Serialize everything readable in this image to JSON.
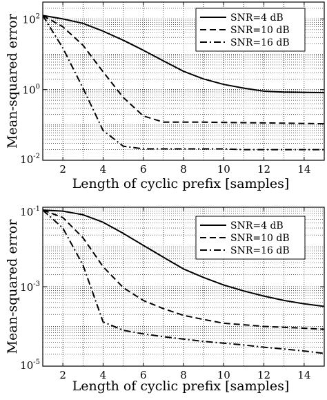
{
  "chart_data": [
    {
      "type": "line",
      "xlabel": "Length of cyclic prefix [samples]",
      "ylabel": "Mean-squared error",
      "yscale": "log",
      "xlim": [
        1,
        15
      ],
      "ylim": [
        0.01,
        300
      ],
      "xticks": [
        2,
        4,
        6,
        8,
        10,
        12,
        14
      ],
      "yticks": [
        {
          "value": 100,
          "base": "10",
          "exp": "2"
        },
        {
          "value": 1,
          "base": "10",
          "exp": "0"
        },
        {
          "value": 0.01,
          "base": "10",
          "exp": "-2"
        }
      ],
      "grid": true,
      "legend_position": "top-right",
      "series": [
        {
          "name": "SNR=4  dB",
          "style": "solid",
          "x": [
            1,
            2,
            3,
            4,
            5,
            6,
            7,
            8,
            9,
            10,
            11,
            12,
            13,
            14,
            15
          ],
          "y": [
            125,
            100,
            75,
            45,
            25,
            13,
            6.5,
            3.3,
            2.0,
            1.4,
            1.1,
            0.9,
            0.85,
            0.83,
            0.82
          ]
        },
        {
          "name": "SNR=10  dB",
          "style": "dashed",
          "x": [
            1,
            2,
            3,
            4,
            5,
            6,
            7,
            8,
            9,
            10,
            11,
            12,
            13,
            14,
            15
          ],
          "y": [
            125,
            60,
            18,
            3.2,
            0.6,
            0.18,
            0.12,
            0.12,
            0.12,
            0.118,
            0.116,
            0.114,
            0.112,
            0.11,
            0.108
          ]
        },
        {
          "name": "SNR=16  dB",
          "style": "dashdot",
          "x": [
            1,
            2,
            3,
            4,
            5,
            6,
            7,
            8,
            9,
            10,
            11,
            12,
            13,
            14,
            15
          ],
          "y": [
            125,
            15,
            1.1,
            0.07,
            0.025,
            0.021,
            0.021,
            0.021,
            0.021,
            0.021,
            0.02,
            0.02,
            0.02,
            0.02,
            0.02
          ]
        }
      ]
    },
    {
      "type": "line",
      "xlabel": "Length of cyclic prefix [samples]",
      "ylabel": "Mean-squared error",
      "yscale": "log",
      "xlim": [
        1,
        15
      ],
      "ylim": [
        1e-05,
        0.1
      ],
      "xticks": [
        2,
        4,
        6,
        8,
        10,
        12,
        14
      ],
      "yticks": [
        {
          "value": 0.1,
          "base": "10",
          "exp": "-1"
        },
        {
          "value": 0.001,
          "base": "10",
          "exp": "-3"
        },
        {
          "value": 1e-05,
          "base": "10",
          "exp": "-5"
        }
      ],
      "grid": true,
      "legend_position": "top-right",
      "series": [
        {
          "name": "SNR=4  dB",
          "style": "solid",
          "x": [
            1,
            2,
            3,
            4,
            5,
            6,
            7,
            8,
            9,
            10,
            11,
            12,
            13,
            14,
            15
          ],
          "y": [
            0.085,
            0.08,
            0.065,
            0.042,
            0.022,
            0.011,
            0.0055,
            0.0028,
            0.0017,
            0.0011,
            0.00078,
            0.00058,
            0.00045,
            0.00037,
            0.00032
          ]
        },
        {
          "name": "SNR=10  dB",
          "style": "dashed",
          "x": [
            1,
            2,
            3,
            4,
            5,
            6,
            7,
            8,
            9,
            10,
            11,
            12,
            13,
            14,
            15
          ],
          "y": [
            0.085,
            0.055,
            0.017,
            0.0032,
            0.00095,
            0.00045,
            0.00028,
            0.00019,
            0.00015,
            0.00012,
            0.00011,
            0.0001,
            9.5e-05,
            9e-05,
            8.5e-05
          ]
        },
        {
          "name": "SNR=16  dB",
          "style": "dashdot",
          "x": [
            1,
            2,
            3,
            4,
            5,
            6,
            7,
            8,
            9,
            10,
            11,
            12,
            13,
            14,
            15
          ],
          "y": [
            0.085,
            0.03,
            0.0035,
            0.00013,
            8e-05,
            6.5e-05,
            5.5e-05,
            4.8e-05,
            4.2e-05,
            3.8e-05,
            3.4e-05,
            3e-05,
            2.7e-05,
            2.4e-05,
            2.1e-05
          ]
        }
      ]
    }
  ]
}
